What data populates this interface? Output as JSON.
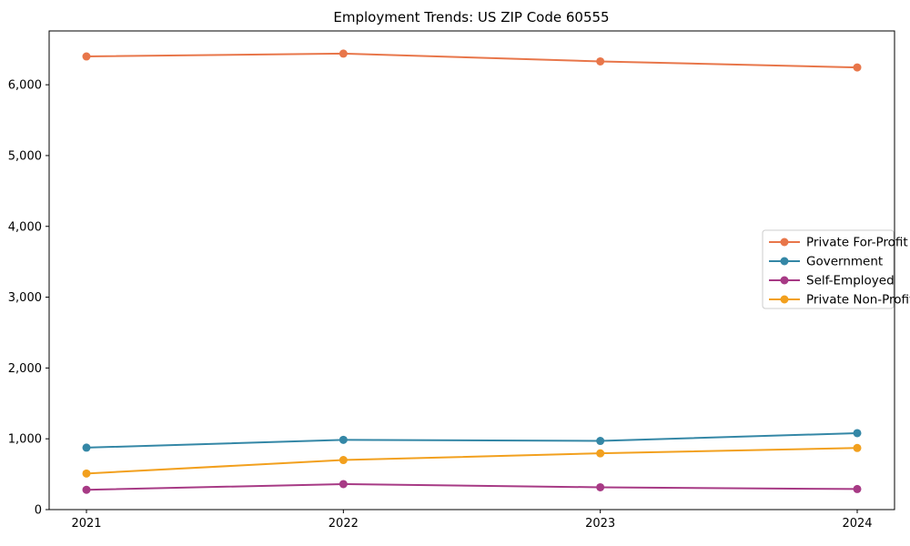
{
  "chart_data": {
    "type": "line",
    "title": "Employment Trends: US ZIP Code 60555",
    "x": [
      2021,
      2022,
      2023,
      2024
    ],
    "xtick_labels": [
      "2021",
      "2022",
      "2023",
      "2024"
    ],
    "series": [
      {
        "name": "Private For-Profit",
        "color": "#E8764A",
        "values": [
          6400,
          6440,
          6330,
          6245
        ]
      },
      {
        "name": "Government",
        "color": "#3487A6",
        "values": [
          875,
          985,
          970,
          1080
        ]
      },
      {
        "name": "Self-Employed",
        "color": "#A73A85",
        "values": [
          280,
          360,
          315,
          290
        ]
      },
      {
        "name": "Private Non-Profit",
        "color": "#F2A01E",
        "values": [
          510,
          700,
          795,
          870
        ]
      }
    ],
    "xlabel": "",
    "ylabel": "",
    "ylim": [
      0,
      6760
    ],
    "yticks": [
      0,
      1000,
      2000,
      3000,
      4000,
      5000,
      6000
    ],
    "ytick_labels": [
      "0",
      "1,000",
      "2,000",
      "3,000",
      "4,000",
      "5,000",
      "6,000"
    ],
    "grid": false,
    "legend_position": "center right",
    "axis_color": "#000000",
    "text_color": "#000000",
    "legend_border_color": "#cccccc",
    "background_color": "#ffffff"
  }
}
